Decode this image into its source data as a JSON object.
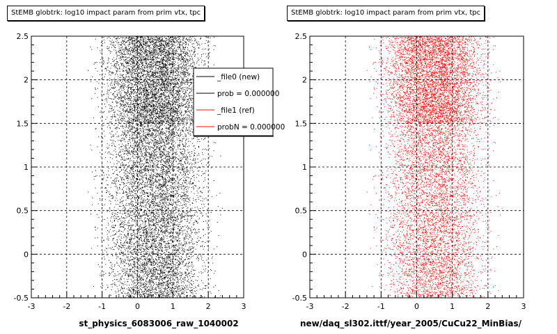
{
  "footer": "",
  "chart_data": [
    {
      "type": "scatter",
      "title": "StEMB globtrk: log10 impact param from prim vtx, tpc",
      "xlabel": "st_physics_6083006_raw_1040002",
      "ylabel": "",
      "xlim": [
        -3,
        3
      ],
      "ylim": [
        -0.5,
        2.5
      ],
      "x_ticks": [
        "-3",
        "-2",
        "-1",
        "0",
        "1",
        "2",
        "3"
      ],
      "y_ticks": [
        "-0.5",
        "0",
        "0.5",
        "1",
        "1.5",
        "2",
        "2.5"
      ],
      "grid": true,
      "color": "#000000",
      "point_density": [
        {
          "x_range": [
            -1.5,
            2.5
          ],
          "y_range": [
            -0.5,
            1.5
          ],
          "level": "medium"
        },
        {
          "x_range": [
            -1.5,
            2.5
          ],
          "y_range": [
            1.5,
            2.5
          ],
          "level": "high"
        }
      ],
      "legend": {
        "placement": "top-right",
        "entries": [
          {
            "label": "_file0 (new)",
            "color": "#000000"
          },
          {
            "label": "prob = 0.000000",
            "color": "#000000"
          },
          {
            "label": "_file1 (ref)",
            "color": "#ff0000"
          },
          {
            "label": "probN = 0.000000",
            "color": "#ff0000"
          }
        ]
      }
    },
    {
      "type": "scatter",
      "title": "StEMB globtrk: log10 impact param from prim vtx, tpc",
      "xlabel": "new/daq_sl302.ittf/year_2005/CuCu22_MinBias/",
      "ylabel": "",
      "xlim": [
        -3,
        3
      ],
      "ylim": [
        -0.5,
        2.5
      ],
      "x_ticks": [
        "-3",
        "-2",
        "-1",
        "0",
        "1",
        "2",
        "3"
      ],
      "y_ticks": [
        "-0.5",
        "0",
        "0.5",
        "1",
        "1.5",
        "2",
        "2.5"
      ],
      "grid": true,
      "color": "#ff0000",
      "point_density": [
        {
          "x_range": [
            -1.5,
            2.5
          ],
          "y_range": [
            -0.5,
            1.5
          ],
          "level": "medium"
        },
        {
          "x_range": [
            -1.5,
            2.5
          ],
          "y_range": [
            1.5,
            2.5
          ],
          "level": "high"
        }
      ]
    }
  ]
}
